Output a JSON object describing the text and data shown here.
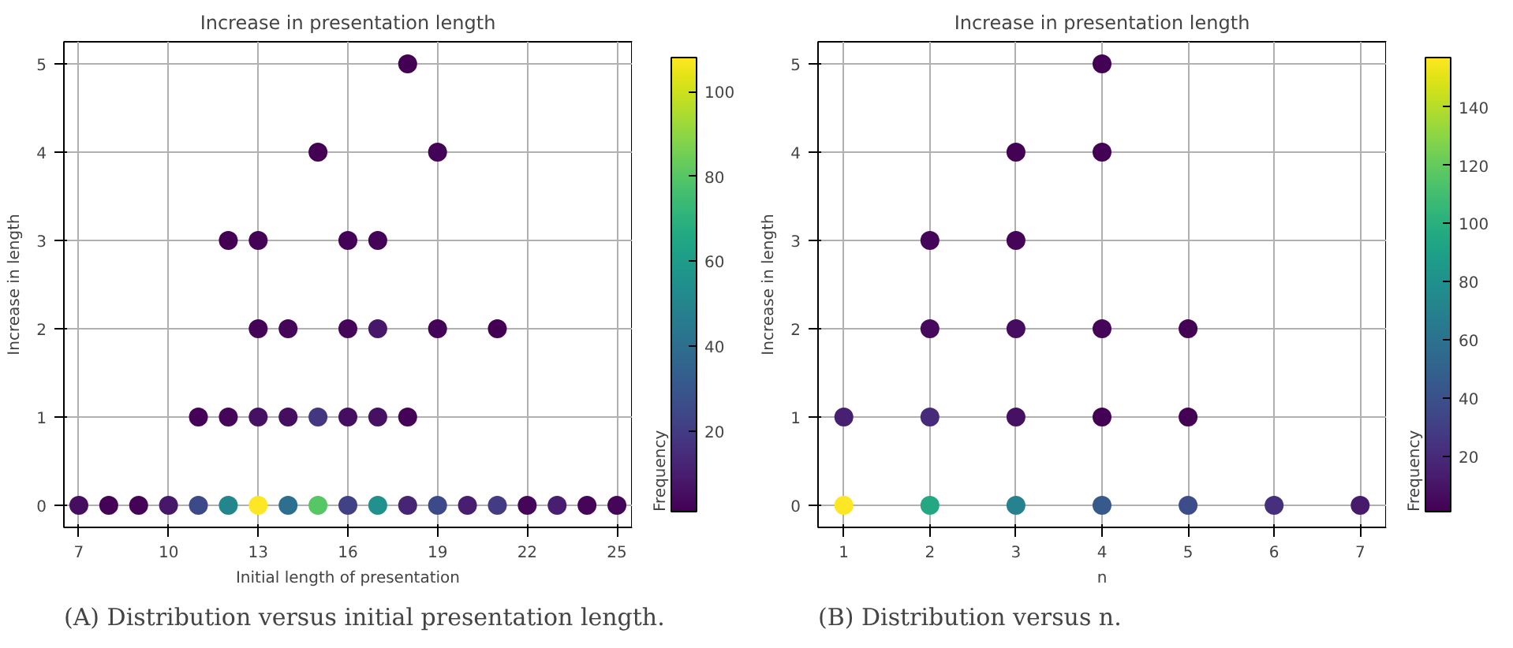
{
  "chart_data": [
    {
      "type": "scatter",
      "title": "Increase in presentation length",
      "xlabel": "Initial length of presentation",
      "ylabel": "Increase in length",
      "clabel": "Frequency",
      "xlim": [
        6.5,
        25.5
      ],
      "xticks": [
        7,
        10,
        13,
        16,
        19,
        22,
        25
      ],
      "ylim": [
        -0.25,
        5.25
      ],
      "yticks": [
        0,
        1,
        2,
        3,
        4,
        5
      ],
      "clim": [
        1,
        108
      ],
      "cticks": [
        20,
        40,
        60,
        80,
        100
      ],
      "grid": true,
      "marker": "circle",
      "annotations": [
        "(A) Distribution versus initial presentation length."
      ],
      "x": [
        7,
        8,
        9,
        10,
        11,
        12,
        13,
        14,
        15,
        16,
        17,
        18,
        19,
        20,
        21,
        22,
        23,
        24,
        25,
        11,
        12,
        13,
        14,
        15,
        16,
        17,
        18,
        13,
        14,
        16,
        17,
        19,
        21,
        12,
        13,
        16,
        17,
        15,
        19,
        18
      ],
      "values": [
        0,
        0,
        0,
        0,
        0,
        0,
        0,
        0,
        0,
        0,
        0,
        0,
        0,
        0,
        0,
        0,
        0,
        0,
        0,
        1,
        1,
        1,
        1,
        1,
        1,
        1,
        1,
        2,
        2,
        2,
        2,
        2,
        2,
        3,
        3,
        3,
        3,
        4,
        4,
        5
      ],
      "cvalues": [
        5,
        2,
        2,
        8,
        25,
        50,
        108,
        40,
        80,
        22,
        55,
        12,
        25,
        10,
        20,
        3,
        10,
        3,
        3,
        2,
        3,
        6,
        5,
        18,
        5,
        6,
        2,
        2,
        3,
        3,
        8,
        2,
        1,
        1,
        2,
        2,
        2,
        1,
        2,
        1
      ]
    },
    {
      "type": "scatter",
      "title": "Increase in presentation length",
      "xlabel": "n",
      "ylabel": "Increase in length",
      "clabel": "Frequency",
      "xlim": [
        0.7,
        7.3
      ],
      "xticks": [
        1,
        2,
        3,
        4,
        5,
        6,
        7
      ],
      "ylim": [
        -0.25,
        5.25
      ],
      "yticks": [
        0,
        1,
        2,
        3,
        4,
        5
      ],
      "clim": [
        1,
        157
      ],
      "cticks": [
        20,
        40,
        60,
        80,
        100,
        120,
        140
      ],
      "grid": true,
      "marker": "circle",
      "annotations": [
        "(B) Distribution versus n."
      ],
      "x": [
        1,
        2,
        3,
        4,
        5,
        6,
        7,
        1,
        2,
        3,
        4,
        5,
        2,
        3,
        4,
        5,
        2,
        3,
        3,
        4,
        4
      ],
      "values": [
        0,
        0,
        0,
        0,
        0,
        0,
        0,
        1,
        1,
        1,
        1,
        1,
        2,
        2,
        2,
        2,
        3,
        3,
        4,
        4,
        5
      ],
      "cvalues": [
        157,
        95,
        70,
        45,
        38,
        22,
        12,
        15,
        20,
        8,
        2,
        2,
        5,
        6,
        4,
        2,
        3,
        4,
        2,
        2,
        2
      ]
    }
  ]
}
